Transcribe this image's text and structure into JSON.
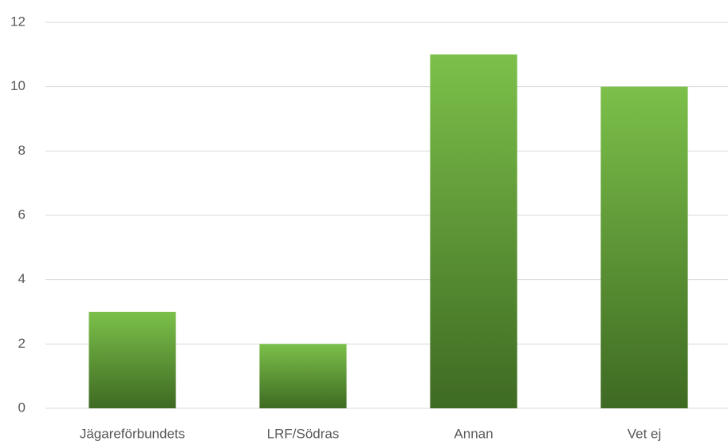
{
  "chart_data": {
    "type": "bar",
    "categories": [
      "Jägareförbundets",
      "LRF/Södras",
      "Annan",
      "Vet ej"
    ],
    "values": [
      3,
      2,
      11,
      10
    ],
    "gradient": [
      "#7cc04a",
      "#3e6a22"
    ],
    "ylim": [
      0,
      12
    ],
    "yticks": [
      0,
      2,
      4,
      6,
      8,
      10,
      12
    ],
    "grid": true
  }
}
